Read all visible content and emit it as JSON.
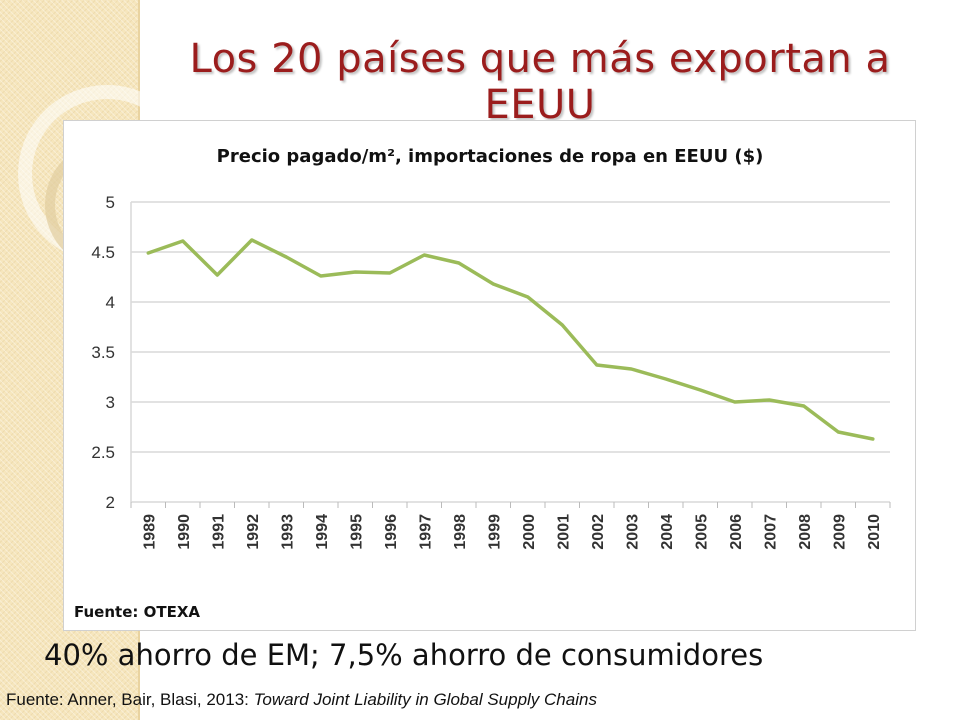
{
  "slide": {
    "title": "Los 20 países que más exportan a EEUU",
    "note": "40% ahorro de EM; 7,5% ahorro de consumidores",
    "footer_plain": "Fuente: Anner, Bair, Blasi, 2013: ",
    "footer_italic": "Toward Joint Liability in Global Supply Chains"
  },
  "colors": {
    "title": "#9b1d1d",
    "line": "#9bbb59",
    "grid": "#d9d9d9",
    "band": "#f6e6bd"
  },
  "chart_data": {
    "type": "line",
    "title": "Precio pagado/m², importaciones de ropa en EEUU ($)",
    "source_label": "Fuente: OTEXA",
    "x": [
      "1989",
      "1990",
      "1991",
      "1992",
      "1993",
      "1994",
      "1995",
      "1996",
      "1997",
      "1998",
      "1999",
      "2000",
      "2001",
      "2002",
      "2003",
      "2004",
      "2005",
      "2006",
      "2007",
      "2008",
      "2009",
      "2010"
    ],
    "series": [
      {
        "values": [
          4.49,
          4.61,
          4.27,
          4.62,
          4.45,
          4.26,
          4.3,
          4.29,
          4.47,
          4.39,
          4.18,
          4.05,
          3.77,
          3.37,
          3.33,
          3.23,
          3.12,
          3.0,
          3.02,
          2.96,
          2.7,
          2.63
        ]
      }
    ],
    "ylim": [
      2,
      5
    ],
    "yticks": [
      "2",
      "2.5",
      "3",
      "3.5",
      "4",
      "4.5",
      "5"
    ],
    "grid": true,
    "legend": "none"
  }
}
